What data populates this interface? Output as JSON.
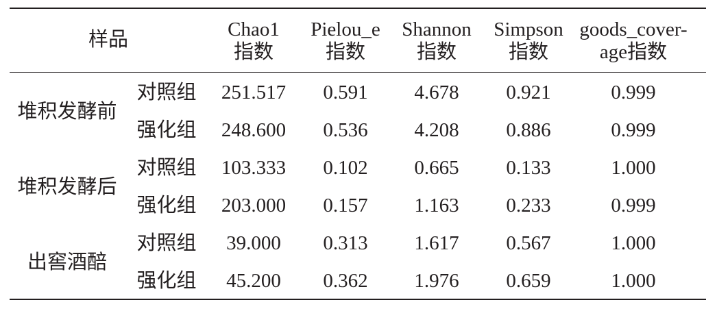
{
  "table": {
    "header": {
      "sample": "样品",
      "columns": [
        [
          "Chao1",
          "指数"
        ],
        [
          "Pielou_e",
          "指数"
        ],
        [
          "Shannon",
          "指数"
        ],
        [
          "Simpson",
          "指数"
        ],
        [
          "goods_cover-",
          "age指数"
        ]
      ]
    },
    "groups": [
      {
        "label": "堆积发酵前",
        "rows": [
          {
            "label": "对照组",
            "values": [
              "251.517",
              "0.591",
              "4.678",
              "0.921",
              "0.999"
            ]
          },
          {
            "label": "强化组",
            "values": [
              "248.600",
              "0.536",
              "4.208",
              "0.886",
              "0.999"
            ]
          }
        ]
      },
      {
        "label": "堆积发酵后",
        "rows": [
          {
            "label": "对照组",
            "values": [
              "103.333",
              "0.102",
              "0.665",
              "0.133",
              "1.000"
            ]
          },
          {
            "label": "强化组",
            "values": [
              "203.000",
              "0.157",
              "1.163",
              "0.233",
              "0.999"
            ]
          }
        ]
      },
      {
        "label": "出窖酒醅",
        "rows": [
          {
            "label": "对照组",
            "values": [
              "39.000",
              "0.313",
              "1.617",
              "0.567",
              "1.000"
            ]
          },
          {
            "label": "强化组",
            "values": [
              "45.200",
              "0.362",
              "1.976",
              "0.659",
              "1.000"
            ]
          }
        ]
      }
    ]
  }
}
